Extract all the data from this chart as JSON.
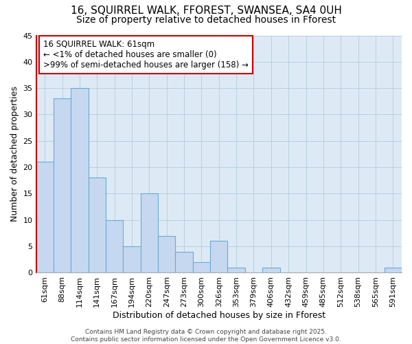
{
  "title_line1": "16, SQUIRREL WALK, FFOREST, SWANSEA, SA4 0UH",
  "title_line2": "Size of property relative to detached houses in Fforest",
  "categories": [
    "61sqm",
    "88sqm",
    "114sqm",
    "141sqm",
    "167sqm",
    "194sqm",
    "220sqm",
    "247sqm",
    "273sqm",
    "300sqm",
    "326sqm",
    "353sqm",
    "379sqm",
    "406sqm",
    "432sqm",
    "459sqm",
    "485sqm",
    "512sqm",
    "538sqm",
    "565sqm",
    "591sqm"
  ],
  "values": [
    21,
    33,
    35,
    18,
    10,
    5,
    15,
    7,
    4,
    2,
    6,
    1,
    0,
    1,
    0,
    0,
    0,
    0,
    0,
    0,
    1
  ],
  "bar_color": "#c5d8f0",
  "bar_edge_color": "#6aaad4",
  "bar_linewidth": 0.8,
  "annotation_box_text": "16 SQUIRREL WALK: 61sqm\n← <1% of detached houses are smaller (0)\n>99% of semi-detached houses are larger (158) →",
  "annotation_box_color": "white",
  "annotation_box_edge_color": "#cc0000",
  "left_spine_color": "#cc0000",
  "xlabel": "Distribution of detached houses by size in Fforest",
  "ylabel": "Number of detached properties",
  "ylim": [
    0,
    45
  ],
  "yticks": [
    0,
    5,
    10,
    15,
    20,
    25,
    30,
    35,
    40,
    45
  ],
  "grid_color": "#b8cfe0",
  "background_color": "#ddeaf5",
  "figure_background": "#ffffff",
  "footer_text": "Contains HM Land Registry data © Crown copyright and database right 2025.\nContains public sector information licensed under the Open Government Licence v3.0.",
  "title_fontsize": 11,
  "subtitle_fontsize": 10,
  "tick_fontsize": 8,
  "label_fontsize": 9,
  "annotation_fontsize": 8.5
}
